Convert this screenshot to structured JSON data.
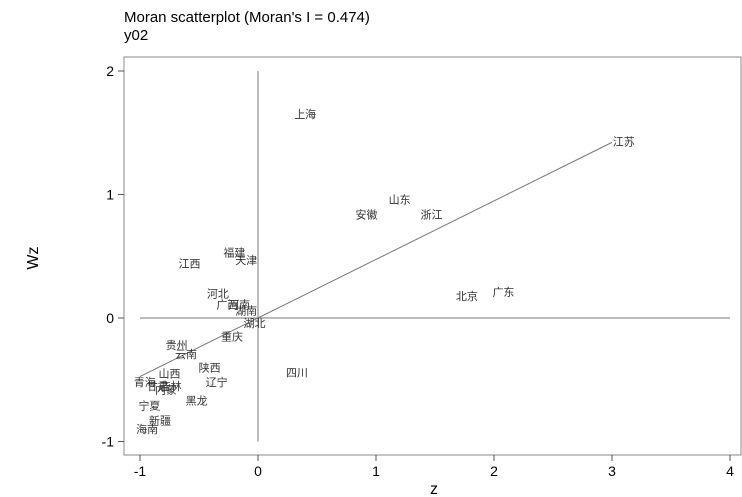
{
  "chart_data": {
    "type": "scatter",
    "title": "Moran scatterplot (Moran's I = 0.474)",
    "subtitle": "y02",
    "xlabel": "z",
    "ylabel": "Wz",
    "xlim": [
      -1.1,
      4.0
    ],
    "ylim": [
      -1.1,
      2.1
    ],
    "xticks": [
      -1,
      0,
      1,
      2,
      3,
      4
    ],
    "yticks": [
      -1,
      0,
      1,
      2
    ],
    "slope": 0.474,
    "points": [
      {
        "label": "上海",
        "x": 0.4,
        "y": 1.65
      },
      {
        "label": "江苏",
        "x": 3.1,
        "y": 1.43
      },
      {
        "label": "山东",
        "x": 1.2,
        "y": 0.96
      },
      {
        "label": "安徽",
        "x": 0.92,
        "y": 0.84
      },
      {
        "label": "浙江",
        "x": 1.47,
        "y": 0.84
      },
      {
        "label": "北京",
        "x": 1.77,
        "y": 0.18
      },
      {
        "label": "广东",
        "x": 2.08,
        "y": 0.21
      },
      {
        "label": "福建",
        "x": -0.2,
        "y": 0.53
      },
      {
        "label": "天津",
        "x": -0.1,
        "y": 0.47
      },
      {
        "label": "江西",
        "x": -0.58,
        "y": 0.44
      },
      {
        "label": "河北",
        "x": -0.34,
        "y": 0.2
      },
      {
        "label": "广西",
        "x": -0.26,
        "y": 0.11
      },
      {
        "label": "河南",
        "x": -0.16,
        "y": 0.11
      },
      {
        "label": "湖南",
        "x": -0.1,
        "y": 0.06
      },
      {
        "label": "湖北",
        "x": -0.03,
        "y": -0.04
      },
      {
        "label": "重庆",
        "x": -0.22,
        "y": -0.15
      },
      {
        "label": "四川",
        "x": 0.33,
        "y": -0.44
      },
      {
        "label": "贵州",
        "x": -0.69,
        "y": -0.22
      },
      {
        "label": "云南",
        "x": -0.61,
        "y": -0.29
      },
      {
        "label": "陕西",
        "x": -0.41,
        "y": -0.4
      },
      {
        "label": "山西",
        "x": -0.75,
        "y": -0.45
      },
      {
        "label": "辽宁",
        "x": -0.35,
        "y": -0.52
      },
      {
        "label": "青海",
        "x": -0.96,
        "y": -0.52
      },
      {
        "label": "甘肃",
        "x": -0.85,
        "y": -0.55
      },
      {
        "label": "内蒙",
        "x": -0.78,
        "y": -0.58
      },
      {
        "label": "吉林",
        "x": -0.74,
        "y": -0.55
      },
      {
        "label": "黑龙",
        "x": -0.52,
        "y": -0.67
      },
      {
        "label": "宁夏",
        "x": -0.92,
        "y": -0.71
      },
      {
        "label": "新疆",
        "x": -0.83,
        "y": -0.83
      },
      {
        "label": "海南",
        "x": -0.94,
        "y": -0.9
      }
    ]
  }
}
